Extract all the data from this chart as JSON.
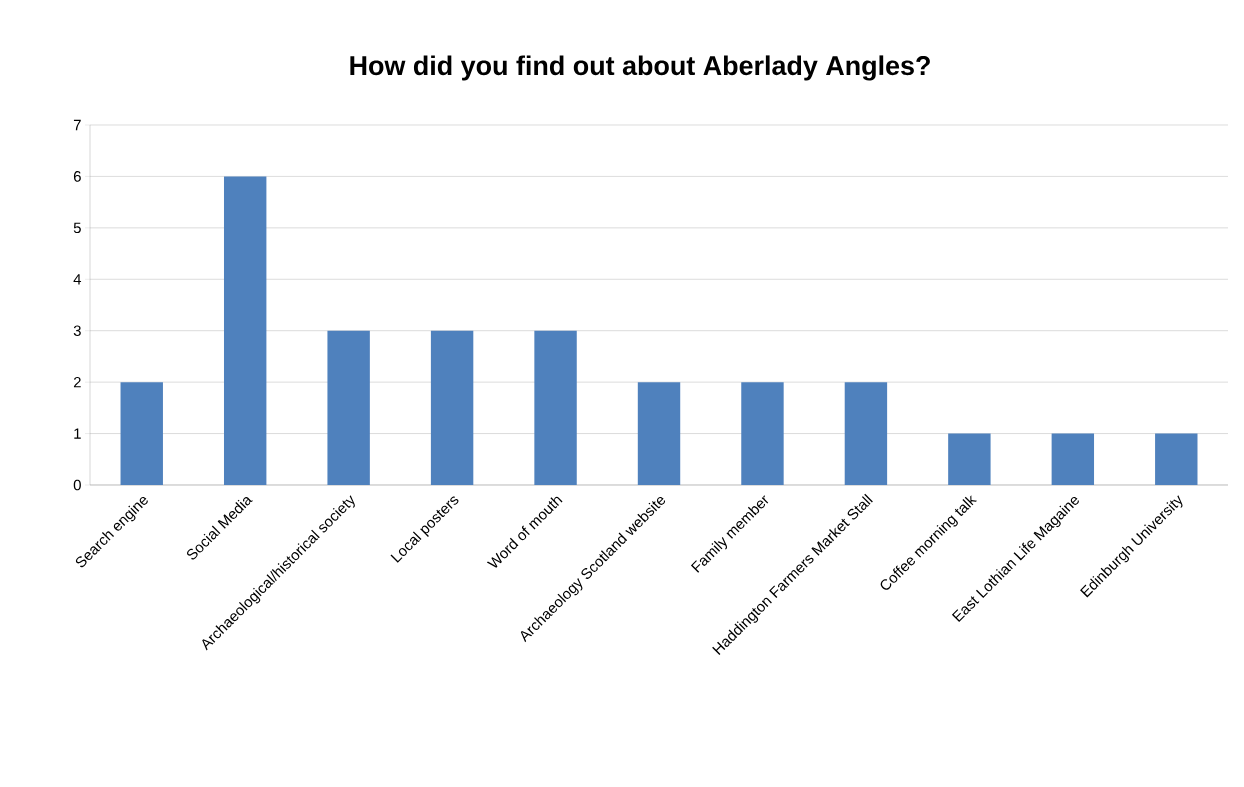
{
  "chart_data": {
    "type": "bar",
    "title": "How did you find out about Aberlady Angles?",
    "categories": [
      "Search engine",
      "Social Media",
      "Archaeological/historical society",
      "Local posters",
      "Word of mouth",
      "Archaeology Scotland website",
      "Family member",
      "Haddington Farmers Market Stall",
      "Coffee morning talk",
      "East Lothian Life Magaine",
      "Edinburgh University"
    ],
    "values": [
      2,
      6,
      3,
      3,
      3,
      2,
      2,
      2,
      1,
      1,
      1
    ],
    "color": "#4f81bd",
    "ylim": [
      0,
      7
    ],
    "yticks": [
      0,
      1,
      2,
      3,
      4,
      5,
      6,
      7
    ],
    "grid": "y"
  }
}
